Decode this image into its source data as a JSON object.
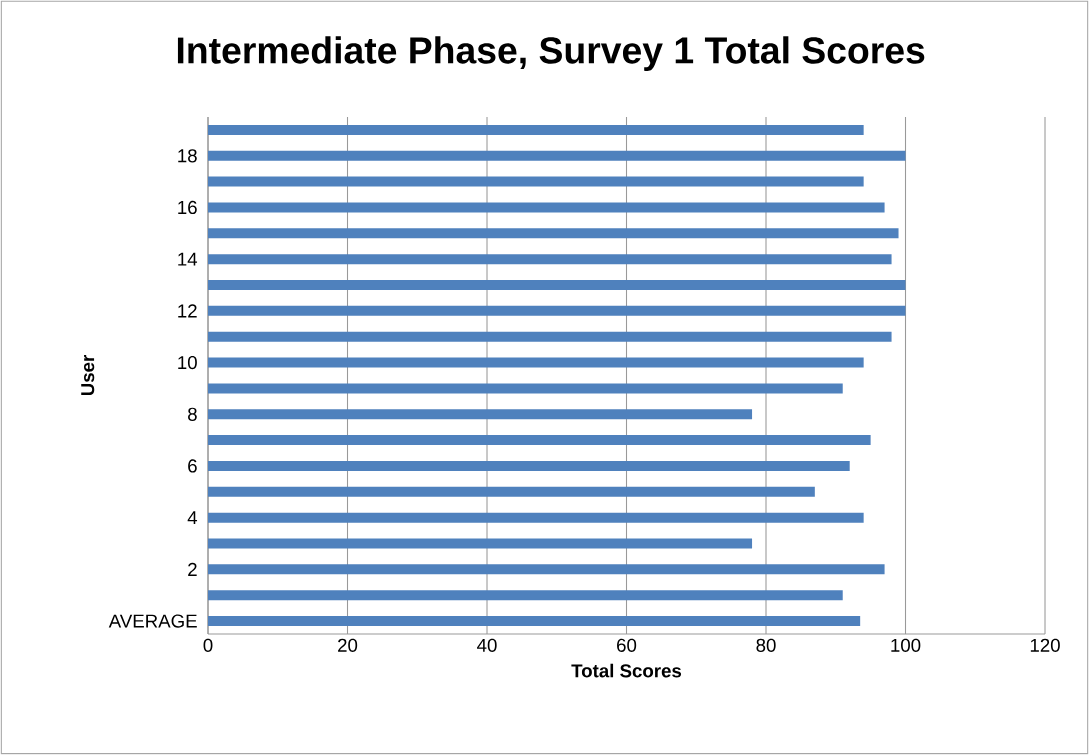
{
  "chart_data": {
    "type": "bar",
    "orientation": "horizontal",
    "title": "Intermediate Phase, Survey 1 Total Scores",
    "xlabel": "Total Scores",
    "ylabel": "User",
    "categories": [
      null,
      "18",
      null,
      "16",
      null,
      "14",
      null,
      "12",
      null,
      "10",
      null,
      "8",
      null,
      "6",
      null,
      "4",
      null,
      "2",
      null,
      "AVERAGE"
    ],
    "values": [
      94,
      100,
      94,
      97,
      99,
      98,
      100,
      100,
      98,
      94,
      91,
      78,
      95,
      92,
      87,
      94,
      78,
      97,
      91,
      93.5
    ],
    "color": "#4f81bd",
    "xlim": [
      0,
      120
    ],
    "xticks": [
      0,
      20,
      40,
      60,
      80,
      100,
      120
    ],
    "grid": "x"
  }
}
